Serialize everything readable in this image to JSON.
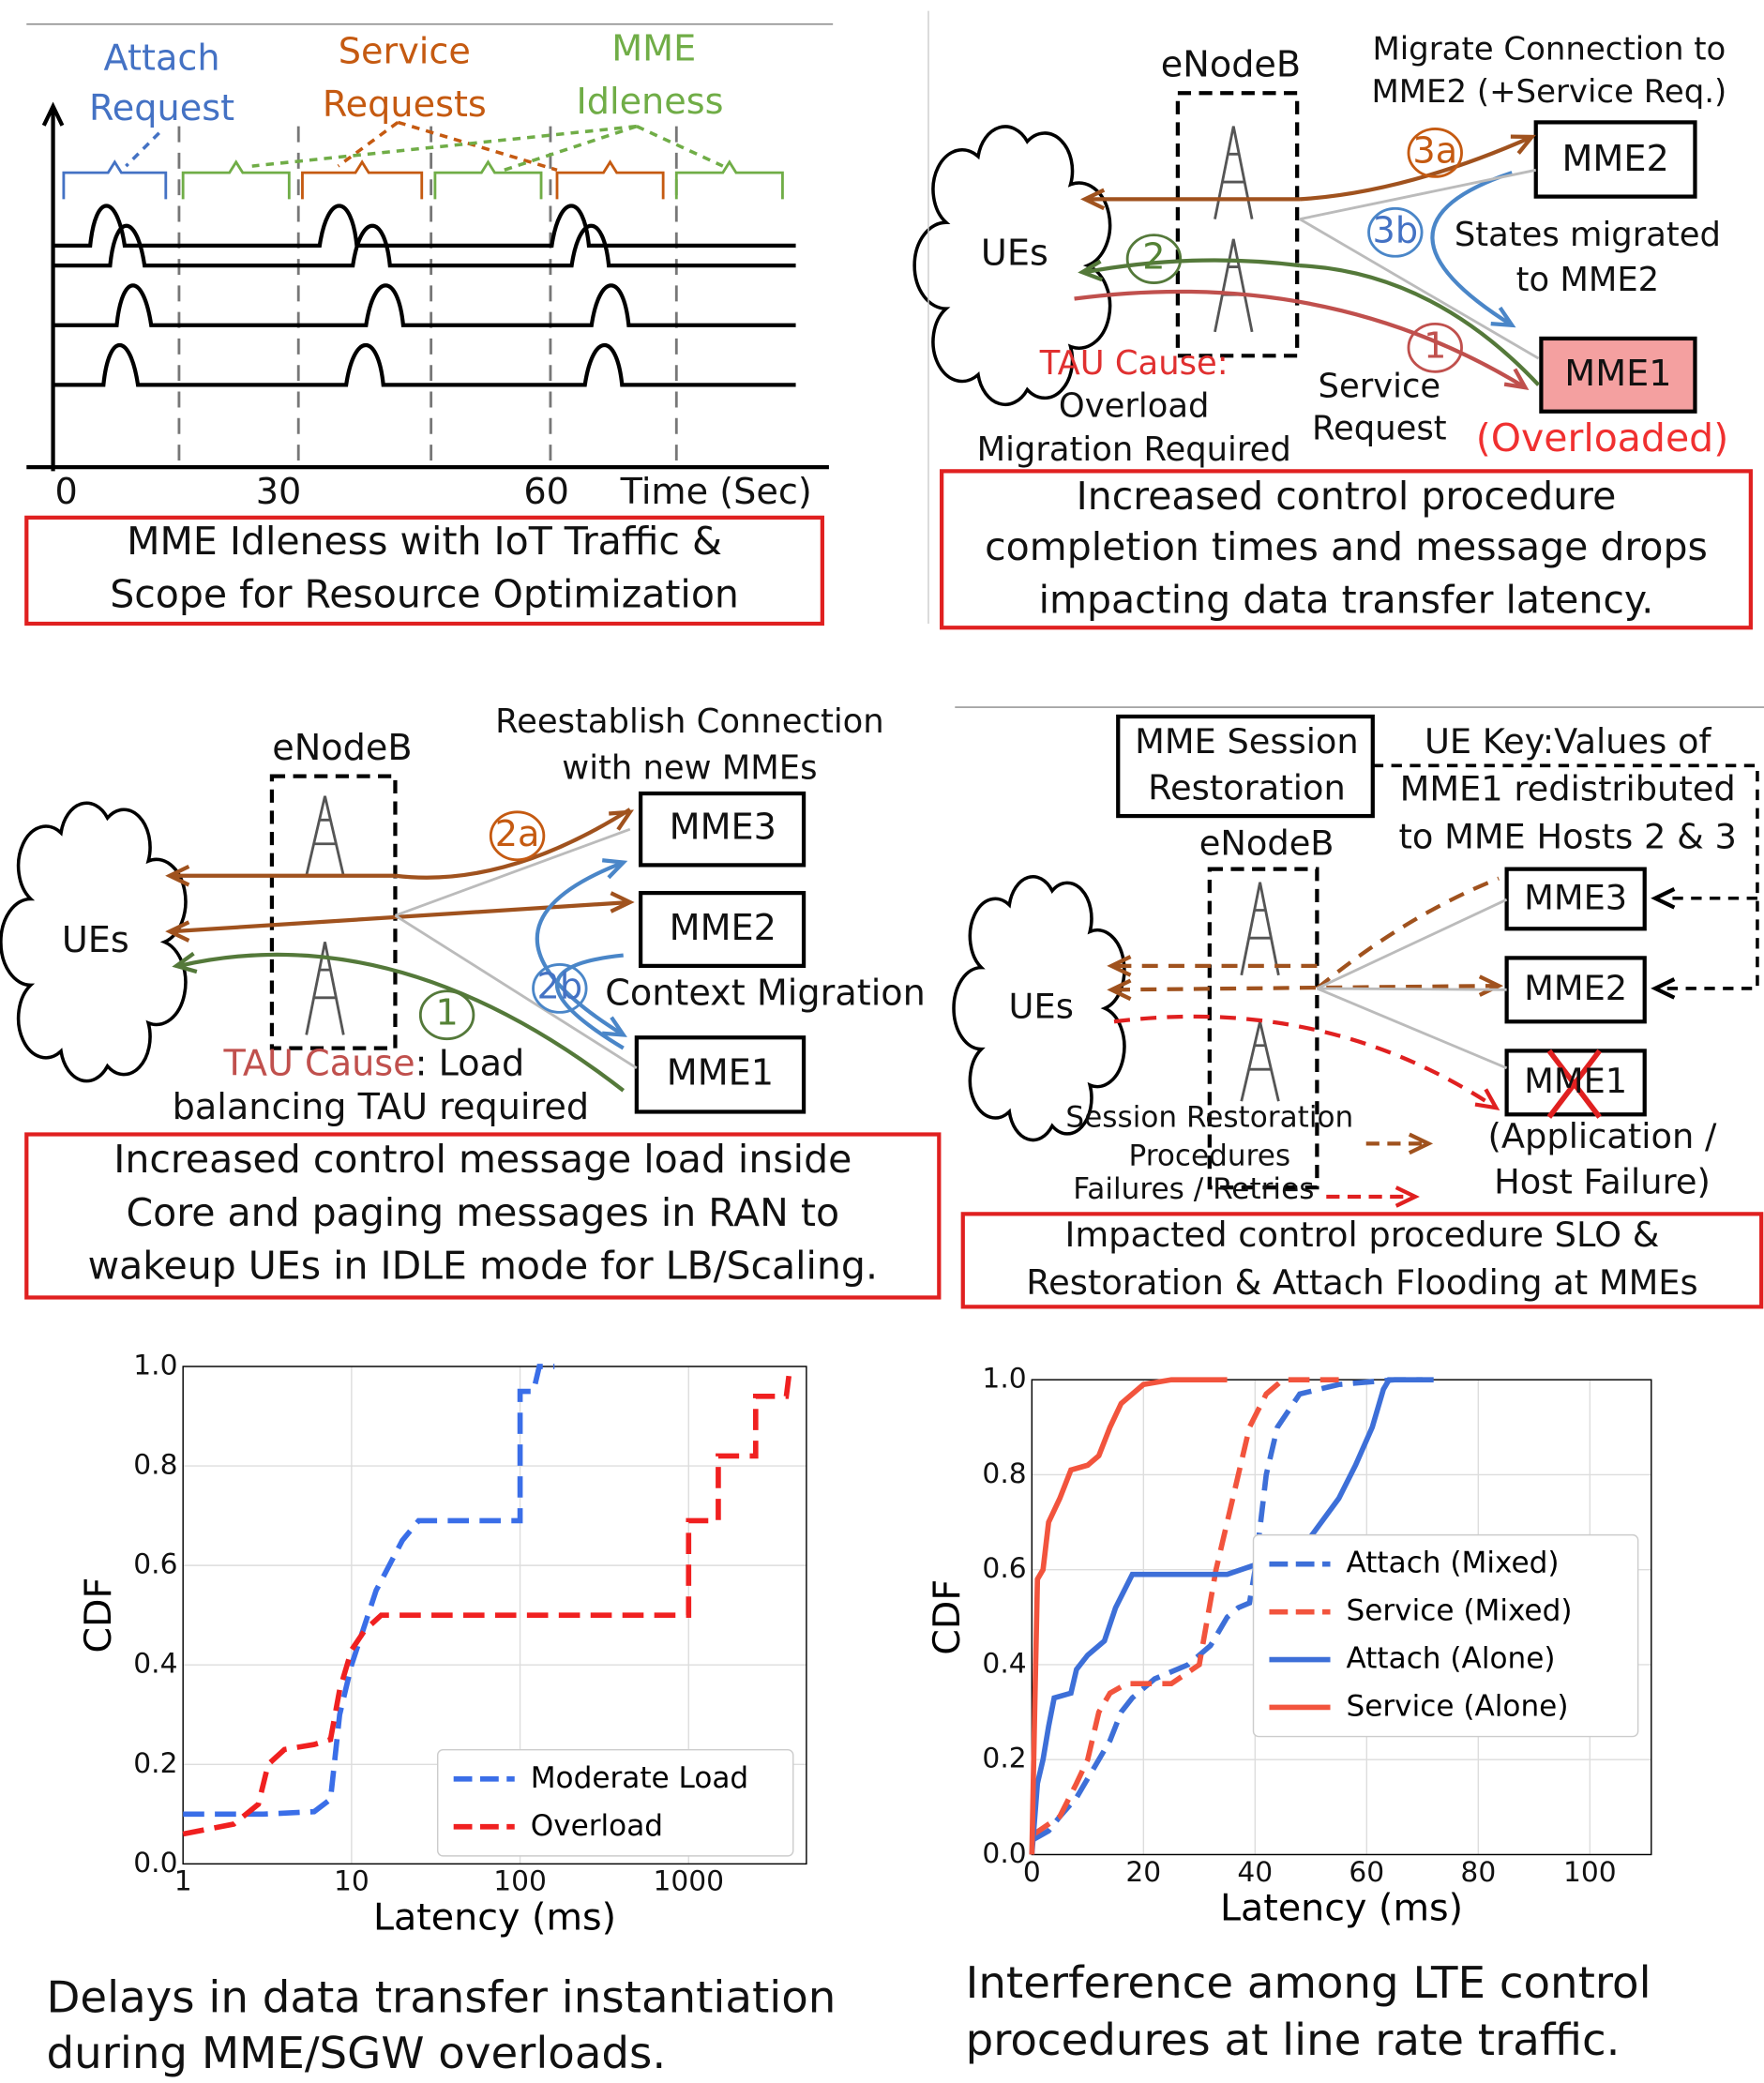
{
  "panels": {
    "idleness": {
      "attach": [
        "Attach",
        "Request"
      ],
      "service": [
        "Service",
        "Requests"
      ],
      "idleness": [
        "MME",
        "Idleness"
      ],
      "ticks": [
        "0",
        "30",
        "60"
      ],
      "axis_label": "Time (Sec)",
      "caption": [
        "MME Idleness with IoT Traffic &",
        "Scope for Resource Optimization"
      ]
    },
    "overload": {
      "enodeb": "eNodeB",
      "migrate": [
        "Migrate Connection to",
        "MME2 (+Service Req.)"
      ],
      "mme2": "MME2",
      "mme1": "MME1",
      "ues": "UEs",
      "steps": [
        "3a",
        "3b",
        "2",
        "1"
      ],
      "states": [
        "States migrated",
        "to MME2"
      ],
      "tau_cause": "TAU Cause:",
      "tau_detail": [
        "Overload",
        "Migration Required"
      ],
      "service_request": [
        "Service",
        "Request"
      ],
      "overloaded": "(Overloaded)",
      "caption": [
        "Increased control procedure",
        "completion times and message drops",
        "impacting data transfer latency."
      ]
    },
    "rebalance": {
      "enodeb": "eNodeB",
      "reestablish": [
        "Reestablish Connection",
        "with new MMEs"
      ],
      "mme3": "MME3",
      "mme2": "MME2",
      "mme1": "MME1",
      "ues": "UEs",
      "steps": [
        "2a",
        "2b",
        "1"
      ],
      "context": "Context Migration",
      "tau_cause": "TAU Cause",
      "tau_detail": [
        ": Load",
        "balancing TAU required"
      ],
      "caption": [
        "Increased control message load inside",
        "Core and paging messages in RAN to",
        "wakeup UEs in IDLE mode for LB/Scaling."
      ]
    },
    "restoration": {
      "session": [
        "MME Session",
        "Restoration"
      ],
      "ue_key": [
        "UE Key:Values of",
        "MME1 redistributed",
        "to MME Hosts 2 & 3"
      ],
      "enodeb": "eNodeB",
      "mme3": "MME3",
      "mme2": "MME2",
      "mme1": "MME1",
      "failure": [
        "(Application /",
        "Host Failure)"
      ],
      "ues": "UEs",
      "legend": [
        "Session Restoration",
        "Procedures",
        "Failures / Retries"
      ],
      "caption": [
        "Impacted control procedure SLO &",
        "Restoration & Attach Flooding at MMEs"
      ]
    }
  },
  "captions": [
    [
      "Delays in data transfer instantiation",
      "during MME/SGW overloads."
    ],
    [
      "Interference among LTE control",
      "procedures at line rate traffic."
    ]
  ],
  "chart_data": [
    {
      "type": "line",
      "xlabel": "Latency (ms)",
      "ylabel": "CDF",
      "xscale": "log",
      "xlim": [
        1,
        5000
      ],
      "xticks": [
        1,
        10,
        100,
        1000
      ],
      "ylim": [
        0,
        1
      ],
      "yticks": [
        {
          "value": 0,
          "label": "0.0"
        },
        0.2,
        0.4,
        0.6,
        0.8,
        {
          "value": 1,
          "label": "1.0"
        }
      ],
      "grid": true,
      "legend": "lower right",
      "series": [
        {
          "name": "Moderate Load",
          "color": "#3a6ee8",
          "linestyle": "dashed",
          "x": [
            1,
            3,
            6,
            7.5,
            8.5,
            10,
            14,
            20,
            25,
            100,
            100,
            120,
            130,
            160
          ],
          "values": [
            0.1,
            0.1,
            0.105,
            0.13,
            0.3,
            0.4,
            0.55,
            0.65,
            0.69,
            0.69,
            0.95,
            0.95,
            1,
            1
          ]
        },
        {
          "name": "Overload",
          "color": "#f02020",
          "linestyle": "dashed",
          "x": [
            1,
            2,
            2.8,
            3.2,
            4,
            6,
            7.5,
            8.5,
            10,
            12,
            15,
            1000,
            1000,
            1500,
            1500,
            2500,
            2500,
            3800,
            4000
          ],
          "values": [
            0.06,
            0.08,
            0.12,
            0.2,
            0.23,
            0.24,
            0.25,
            0.35,
            0.43,
            0.47,
            0.5,
            0.5,
            0.69,
            0.69,
            0.82,
            0.82,
            0.94,
            0.94,
            1
          ]
        }
      ]
    },
    {
      "type": "line",
      "xlabel": "Latency (ms)",
      "ylabel": "CDF",
      "xlim": [
        0,
        111
      ],
      "xticks": [
        0,
        20,
        40,
        60,
        80,
        100
      ],
      "ylim": [
        0,
        1
      ],
      "yticks": [
        {
          "value": 0,
          "label": "0.0"
        },
        0.2,
        0.4,
        0.6,
        0.8,
        {
          "value": 1,
          "label": "1.0"
        }
      ],
      "grid": true,
      "legend": "center right",
      "series": [
        {
          "name": "Attach (Mixed)",
          "color": "#3d6fd8",
          "linestyle": "dashed",
          "x": [
            0,
            3,
            5,
            8,
            10,
            12,
            14,
            16,
            18,
            22,
            28,
            32,
            35,
            37,
            39,
            40,
            41,
            42,
            44,
            48,
            55,
            65,
            72
          ],
          "values": [
            0.03,
            0.05,
            0.08,
            0.12,
            0.16,
            0.2,
            0.24,
            0.3,
            0.33,
            0.37,
            0.4,
            0.44,
            0.5,
            0.52,
            0.53,
            0.6,
            0.7,
            0.8,
            0.9,
            0.97,
            0.99,
            1,
            1
          ]
        },
        {
          "name": "Service (Mixed)",
          "color": "#f2543d",
          "linestyle": "dashed",
          "x": [
            0,
            5,
            8,
            10,
            12,
            14,
            17,
            25,
            30,
            33,
            35,
            37,
            39,
            42,
            45,
            55
          ],
          "values": [
            0.04,
            0.08,
            0.15,
            0.2,
            0.3,
            0.34,
            0.36,
            0.36,
            0.4,
            0.6,
            0.7,
            0.8,
            0.9,
            0.97,
            1,
            1
          ]
        },
        {
          "name": "Attach (Alone)",
          "color": "#3d6fd8",
          "linestyle": "solid",
          "x": [
            0,
            1,
            2,
            3,
            4,
            7,
            8,
            10,
            13,
            15,
            18,
            35,
            40,
            45,
            50,
            55,
            58,
            61,
            63,
            64,
            70
          ],
          "values": [
            0,
            0.15,
            0.2,
            0.27,
            0.33,
            0.34,
            0.39,
            0.42,
            0.45,
            0.52,
            0.59,
            0.59,
            0.61,
            0.63,
            0.67,
            0.75,
            0.82,
            0.9,
            0.98,
            1,
            1
          ]
        },
        {
          "name": "Service (Alone)",
          "color": "#f2543d",
          "linestyle": "solid",
          "x": [
            0,
            0.5,
            1,
            2,
            3,
            5,
            7,
            10,
            12,
            14,
            16,
            20,
            25,
            35
          ],
          "values": [
            0,
            0.3,
            0.58,
            0.6,
            0.7,
            0.75,
            0.81,
            0.82,
            0.84,
            0.9,
            0.95,
            0.99,
            1,
            1
          ]
        }
      ]
    }
  ]
}
